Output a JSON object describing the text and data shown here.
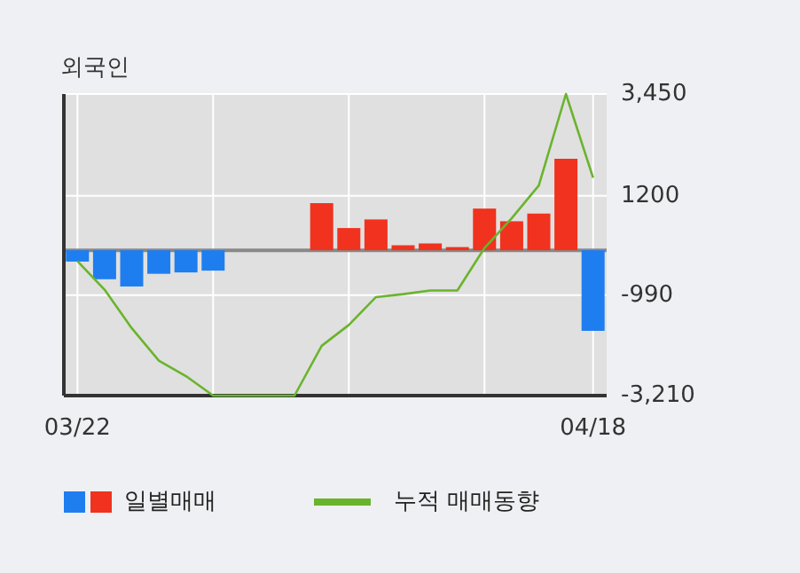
{
  "chart_data": {
    "type": "bar",
    "title": "외국인",
    "categories": [
      "03/22",
      null,
      null,
      null,
      null,
      null,
      null,
      null,
      null,
      null,
      null,
      null,
      null,
      null,
      null,
      null,
      null,
      null,
      null,
      "04/18"
    ],
    "series": [
      {
        "name": "일별매매",
        "colors": [
          "#1e7ef0",
          "#1e7ef0",
          "#1e7ef0",
          "#1e7ef0",
          "#1e7ef0",
          "#1e7ef0",
          "#1e7ef0",
          "#1e7ef0",
          "#1e7ef0",
          "#f0321e",
          "#f0321e",
          "#f0321e",
          "#f0321e",
          "#f0321e",
          "#f0321e",
          "#f0321e",
          "#f0321e",
          "#f0321e",
          "#f0321e",
          "#1e7ef0"
        ],
        "values": [
          -250,
          -640,
          -800,
          -520,
          -490,
          -450,
          0,
          0,
          0,
          1040,
          490,
          680,
          110,
          150,
          70,
          920,
          640,
          810,
          2020,
          -1780
        ]
      },
      {
        "name": "누적 매매동향",
        "type": "line",
        "color": "#6ab42d",
        "values": [
          -240,
          -870,
          -1720,
          -2440,
          -2780,
          -3210,
          -3210,
          -3210,
          -3210,
          -2110,
          -1650,
          -1035,
          -970,
          -890,
          -890,
          50,
          705,
          1430,
          3450,
          1600
        ]
      }
    ],
    "ylim": [
      -3210,
      3450
    ],
    "yticks": [
      {
        "value": 3450,
        "label": "3,450"
      },
      1200,
      {
        "value": -990,
        "label": "-990"
      },
      {
        "value": -3210,
        "label": "-3,210"
      }
    ],
    "grid": true,
    "legend": "bottom",
    "ref_lines": [
      {
        "axis": "y",
        "value": 0,
        "color": "#888888"
      }
    ]
  }
}
